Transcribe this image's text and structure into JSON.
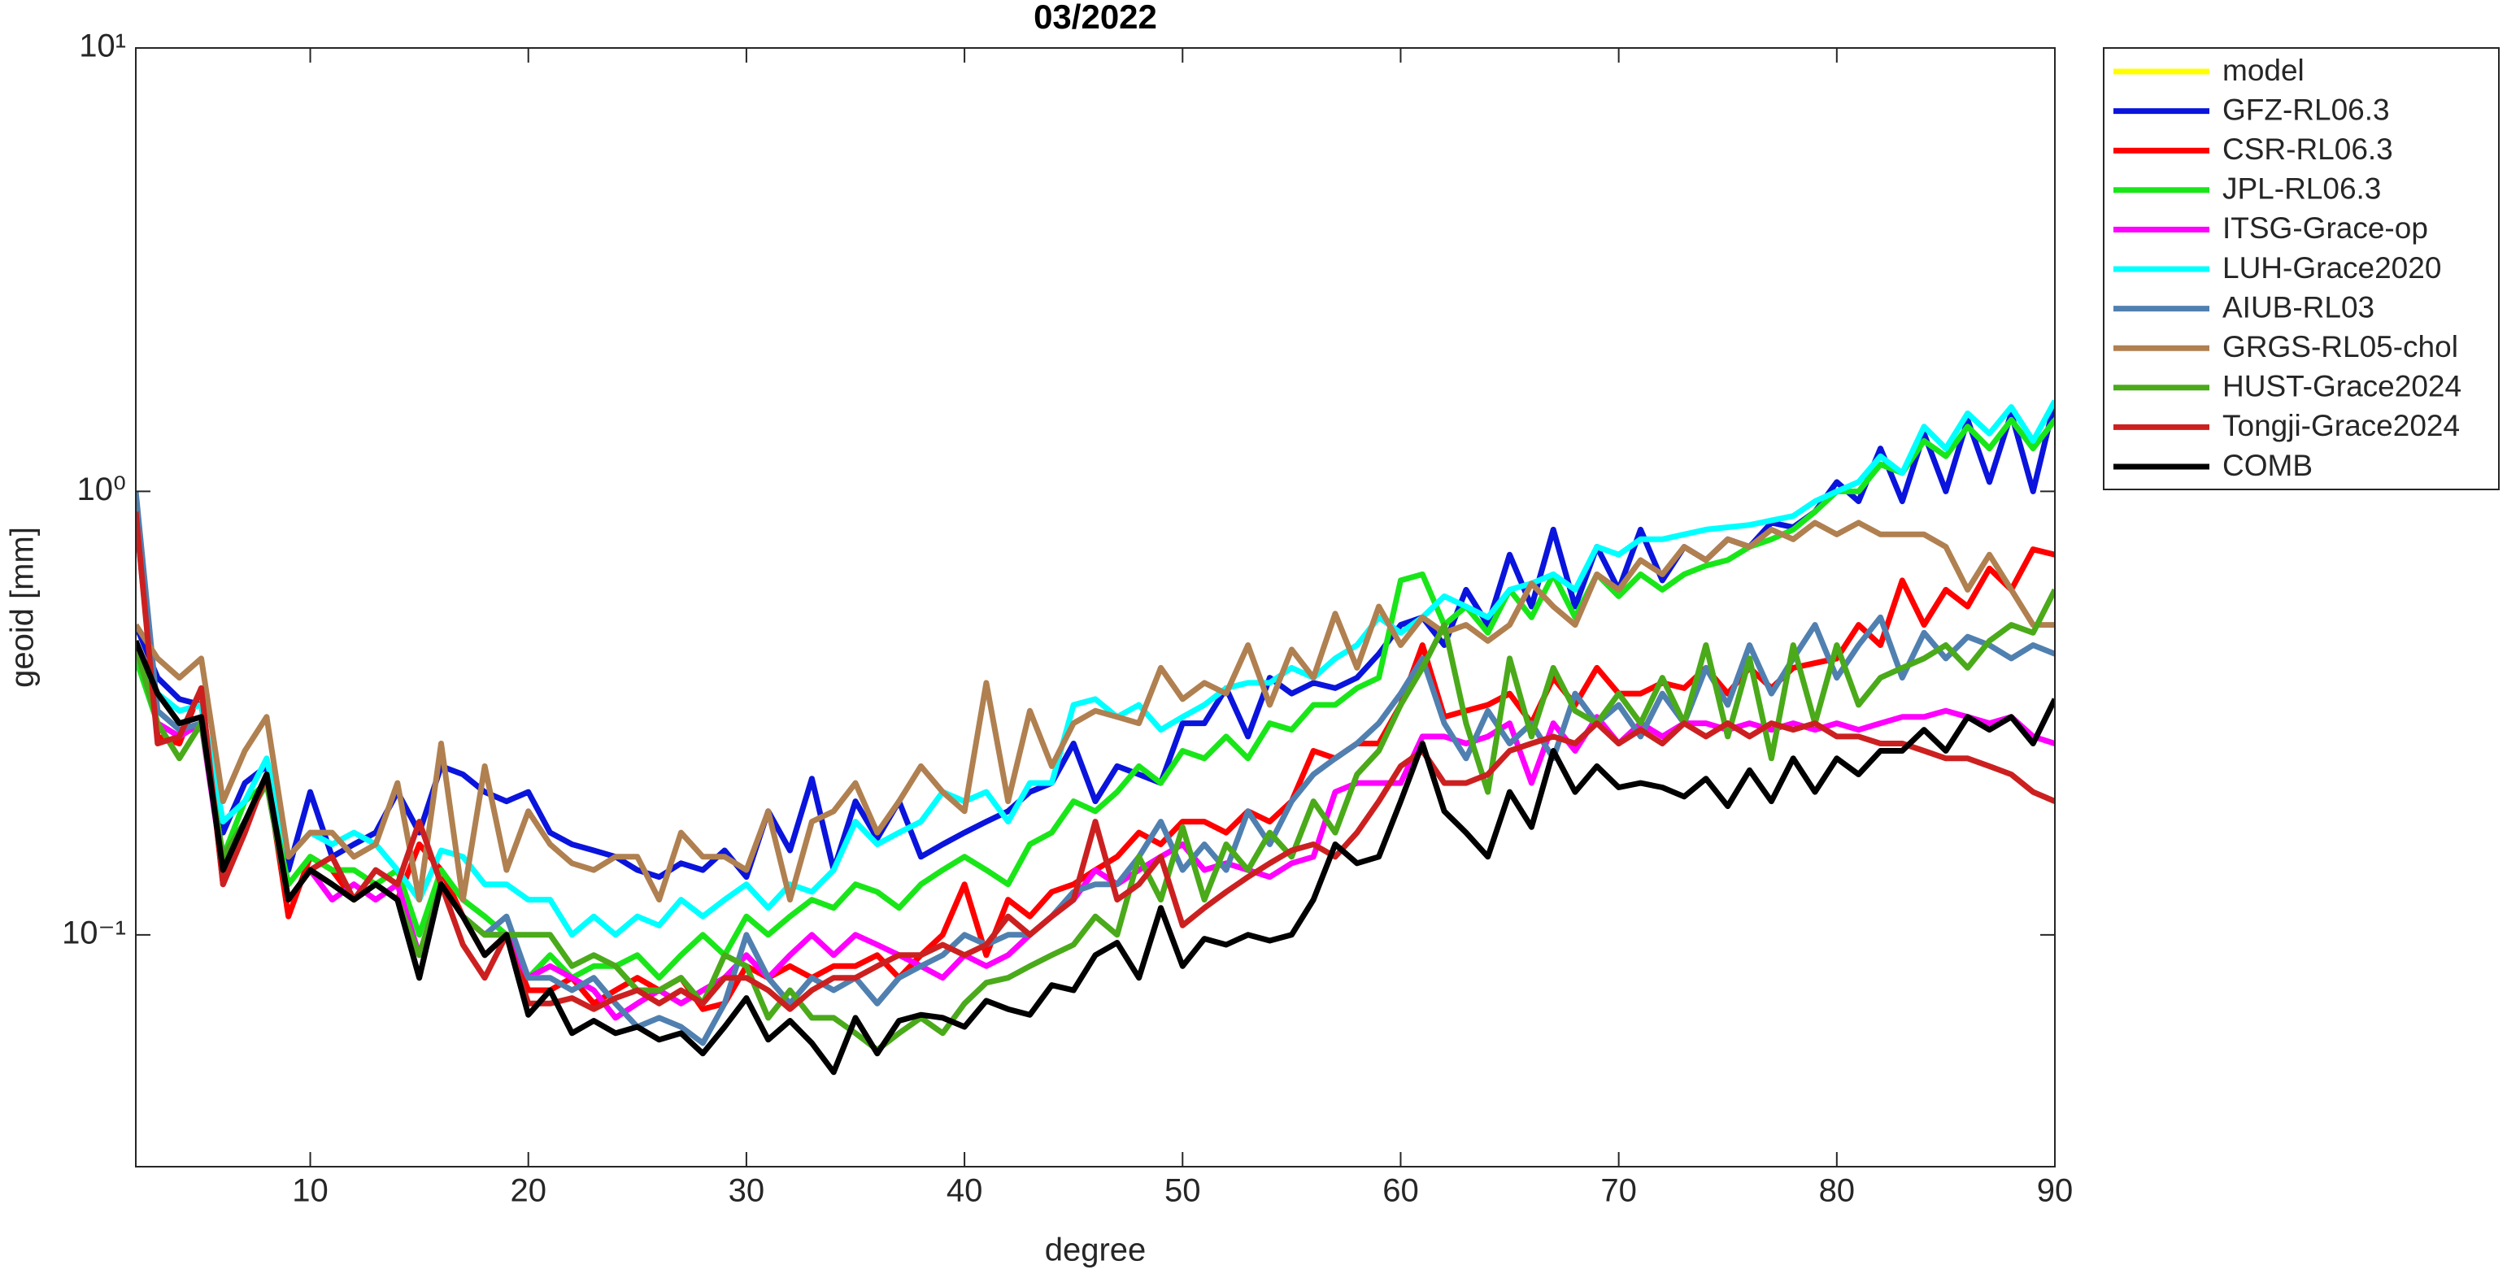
{
  "chart_data": {
    "type": "line",
    "title": "03/2022",
    "xlabel": "degree",
    "ylabel": "geoid [mm]",
    "log_y": true,
    "grid": false,
    "legend": "outside-right",
    "xlim": [
      2,
      90
    ],
    "xticks": [
      10,
      20,
      30,
      40,
      50,
      60,
      70,
      80,
      90
    ],
    "ylim": [
      0.03,
      10
    ],
    "yticks": [
      {
        "value": 0.1,
        "label": "10⁻¹"
      },
      {
        "value": 1,
        "label": "10⁰"
      },
      {
        "value": 10,
        "label": "10¹"
      }
    ],
    "x": [
      2,
      3,
      4,
      5,
      6,
      7,
      8,
      9,
      10,
      11,
      12,
      13,
      14,
      15,
      16,
      17,
      18,
      19,
      20,
      21,
      22,
      23,
      24,
      25,
      26,
      27,
      28,
      29,
      30,
      31,
      32,
      33,
      34,
      35,
      36,
      37,
      38,
      39,
      40,
      41,
      42,
      43,
      44,
      45,
      46,
      47,
      48,
      49,
      50,
      51,
      52,
      53,
      54,
      55,
      56,
      57,
      58,
      59,
      60,
      61,
      62,
      63,
      64,
      65,
      66,
      67,
      68,
      69,
      70,
      71,
      72,
      73,
      74,
      75,
      76,
      77,
      78,
      79,
      80,
      81,
      82,
      83,
      84,
      85,
      86,
      87,
      88,
      89,
      90
    ],
    "series": [
      {
        "name": "model",
        "color": "#ffff00",
        "values": [
          null,
          null,
          null,
          null,
          null,
          null,
          null,
          null,
          null,
          null,
          null,
          null,
          null,
          null,
          null,
          null,
          null,
          null,
          null,
          null,
          null,
          null,
          null,
          null,
          null,
          null,
          null,
          null,
          null,
          null,
          null,
          null,
          null,
          null,
          null,
          null,
          null,
          null,
          null,
          null,
          null,
          null,
          null,
          null,
          null,
          null,
          null,
          null,
          null,
          null,
          null,
          null,
          null,
          null,
          null,
          null,
          null,
          null,
          null,
          null,
          null,
          null,
          null,
          null,
          null,
          null,
          null,
          null,
          null,
          null,
          null,
          null,
          null,
          null,
          null,
          null,
          null,
          null,
          null,
          null,
          null,
          null,
          null,
          null,
          null,
          null,
          null,
          null,
          null
        ]
      },
      {
        "name": "GFZ-RL06.3",
        "color": "#0a14dc",
        "values": [
          0.5,
          0.38,
          0.34,
          0.33,
          0.17,
          0.22,
          0.24,
          0.14,
          0.21,
          0.15,
          0.16,
          0.17,
          0.21,
          0.17,
          0.24,
          0.23,
          0.21,
          0.2,
          0.21,
          0.17,
          0.16,
          0.155,
          0.15,
          0.14,
          0.135,
          0.145,
          0.14,
          0.155,
          0.135,
          0.19,
          0.155,
          0.225,
          0.14,
          0.2,
          0.165,
          0.2,
          0.15,
          0.16,
          0.17,
          0.18,
          0.19,
          0.21,
          0.22,
          0.27,
          0.2,
          0.24,
          0.23,
          0.22,
          0.3,
          0.3,
          0.36,
          0.28,
          0.38,
          0.35,
          0.37,
          0.36,
          0.38,
          0.43,
          0.5,
          0.52,
          0.45,
          0.6,
          0.5,
          0.72,
          0.55,
          0.82,
          0.55,
          0.75,
          0.6,
          0.82,
          0.63,
          0.75,
          0.7,
          0.78,
          0.75,
          0.85,
          0.83,
          0.9,
          1.05,
          0.95,
          1.25,
          0.95,
          1.35,
          1.0,
          1.45,
          1.05,
          1.5,
          1.0,
          1.6
        ]
      },
      {
        "name": "CSR-RL06.3",
        "color": "#ff0000",
        "values": [
          0.9,
          0.28,
          0.27,
          0.36,
          0.13,
          0.17,
          0.23,
          0.11,
          0.15,
          0.14,
          0.12,
          0.13,
          0.12,
          0.16,
          0.14,
          0.11,
          0.09,
          0.1,
          0.075,
          0.075,
          0.08,
          0.07,
          0.075,
          0.08,
          0.075,
          0.08,
          0.068,
          0.07,
          0.085,
          0.08,
          0.085,
          0.08,
          0.085,
          0.085,
          0.09,
          0.08,
          0.09,
          0.1,
          0.13,
          0.09,
          0.12,
          0.11,
          0.125,
          0.13,
          0.14,
          0.15,
          0.17,
          0.16,
          0.18,
          0.18,
          0.17,
          0.19,
          0.18,
          0.2,
          0.26,
          0.25,
          0.27,
          0.27,
          0.33,
          0.45,
          0.31,
          0.32,
          0.33,
          0.35,
          0.3,
          0.38,
          0.33,
          0.4,
          0.35,
          0.35,
          0.37,
          0.36,
          0.4,
          0.35,
          0.4,
          0.36,
          0.4,
          0.41,
          0.42,
          0.5,
          0.45,
          0.63,
          0.5,
          0.6,
          0.55,
          0.67,
          0.6,
          0.74,
          0.72
        ]
      },
      {
        "name": "JPL-RL06.3",
        "color": "#19e619",
        "values": [
          0.42,
          0.3,
          0.28,
          0.3,
          0.15,
          0.2,
          0.22,
          0.13,
          0.15,
          0.14,
          0.14,
          0.13,
          0.14,
          0.1,
          0.14,
          0.12,
          0.11,
          0.1,
          0.08,
          0.09,
          0.08,
          0.085,
          0.085,
          0.09,
          0.08,
          0.09,
          0.1,
          0.09,
          0.11,
          0.1,
          0.11,
          0.12,
          0.115,
          0.13,
          0.125,
          0.115,
          0.13,
          0.14,
          0.15,
          0.14,
          0.13,
          0.16,
          0.17,
          0.2,
          0.19,
          0.21,
          0.24,
          0.22,
          0.26,
          0.25,
          0.28,
          0.25,
          0.3,
          0.29,
          0.33,
          0.33,
          0.36,
          0.38,
          0.63,
          0.65,
          0.5,
          0.55,
          0.48,
          0.6,
          0.52,
          0.65,
          0.52,
          0.65,
          0.58,
          0.65,
          0.6,
          0.65,
          0.68,
          0.7,
          0.75,
          0.78,
          0.82,
          0.9,
          1.0,
          1.0,
          1.15,
          1.1,
          1.3,
          1.2,
          1.4,
          1.25,
          1.45,
          1.25,
          1.45
        ]
      },
      {
        "name": "ITSG-Grace-op",
        "color": "#ff00ff",
        "values": [
          0.45,
          0.3,
          0.28,
          0.3,
          0.14,
          0.18,
          0.22,
          0.12,
          0.14,
          0.12,
          0.13,
          0.12,
          0.13,
          0.09,
          0.13,
          0.11,
          0.1,
          0.1,
          0.08,
          0.085,
          0.08,
          0.075,
          0.065,
          0.07,
          0.075,
          0.07,
          0.075,
          0.08,
          0.09,
          0.08,
          0.09,
          0.1,
          0.09,
          0.1,
          0.095,
          0.09,
          0.085,
          0.08,
          0.09,
          0.085,
          0.09,
          0.1,
          0.11,
          0.12,
          0.14,
          0.13,
          0.14,
          0.15,
          0.16,
          0.14,
          0.145,
          0.14,
          0.135,
          0.145,
          0.15,
          0.21,
          0.22,
          0.22,
          0.22,
          0.28,
          0.28,
          0.27,
          0.28,
          0.3,
          0.22,
          0.3,
          0.26,
          0.31,
          0.27,
          0.3,
          0.28,
          0.3,
          0.3,
          0.29,
          0.3,
          0.29,
          0.3,
          0.29,
          0.3,
          0.29,
          0.3,
          0.31,
          0.31,
          0.32,
          0.31,
          0.3,
          0.31,
          0.28,
          0.27
        ]
      },
      {
        "name": "LUH-Grace2020",
        "color": "#00ffff",
        "values": [
          0.45,
          0.35,
          0.32,
          0.33,
          0.18,
          0.2,
          0.25,
          0.15,
          0.17,
          0.16,
          0.17,
          0.16,
          0.14,
          0.12,
          0.155,
          0.15,
          0.13,
          0.13,
          0.12,
          0.12,
          0.1,
          0.11,
          0.1,
          0.11,
          0.105,
          0.12,
          0.11,
          0.12,
          0.13,
          0.115,
          0.13,
          0.125,
          0.14,
          0.18,
          0.16,
          0.17,
          0.18,
          0.21,
          0.2,
          0.21,
          0.18,
          0.22,
          0.22,
          0.33,
          0.34,
          0.31,
          0.33,
          0.29,
          0.31,
          0.33,
          0.36,
          0.37,
          0.37,
          0.4,
          0.38,
          0.42,
          0.45,
          0.52,
          0.48,
          0.52,
          0.58,
          0.55,
          0.52,
          0.6,
          0.62,
          0.65,
          0.6,
          0.75,
          0.72,
          0.78,
          0.78,
          0.8,
          0.82,
          0.83,
          0.84,
          0.86,
          0.88,
          0.95,
          1.0,
          1.05,
          1.2,
          1.1,
          1.4,
          1.25,
          1.5,
          1.35,
          1.55,
          1.3,
          1.6
        ]
      },
      {
        "name": "AIUB-RL03",
        "color": "#5080b0",
        "values": [
          1.0,
          0.32,
          0.29,
          0.3,
          0.15,
          0.18,
          0.22,
          0.12,
          0.14,
          0.13,
          0.12,
          0.13,
          0.12,
          0.08,
          0.13,
          0.11,
          0.1,
          0.11,
          0.08,
          0.08,
          0.075,
          0.08,
          0.07,
          0.062,
          0.065,
          0.062,
          0.057,
          0.07,
          0.1,
          0.08,
          0.07,
          0.08,
          0.075,
          0.08,
          0.07,
          0.08,
          0.085,
          0.09,
          0.1,
          0.095,
          0.1,
          0.1,
          0.11,
          0.125,
          0.13,
          0.13,
          0.15,
          0.18,
          0.14,
          0.16,
          0.14,
          0.19,
          0.16,
          0.2,
          0.23,
          0.25,
          0.27,
          0.3,
          0.35,
          0.42,
          0.3,
          0.25,
          0.32,
          0.27,
          0.3,
          0.25,
          0.35,
          0.3,
          0.33,
          0.28,
          0.35,
          0.3,
          0.4,
          0.33,
          0.45,
          0.35,
          0.42,
          0.5,
          0.38,
          0.45,
          0.52,
          0.38,
          0.48,
          0.42,
          0.47,
          0.45,
          0.42,
          0.45,
          0.43
        ]
      },
      {
        "name": "GRGS-RL05-chol",
        "color": "#b08050",
        "values": [
          0.5,
          0.42,
          0.38,
          0.42,
          0.2,
          0.26,
          0.31,
          0.15,
          0.17,
          0.17,
          0.15,
          0.16,
          0.22,
          0.12,
          0.27,
          0.12,
          0.24,
          0.14,
          0.19,
          0.16,
          0.145,
          0.14,
          0.15,
          0.15,
          0.12,
          0.17,
          0.15,
          0.15,
          0.14,
          0.19,
          0.12,
          0.18,
          0.19,
          0.22,
          0.17,
          0.2,
          0.24,
          0.21,
          0.19,
          0.37,
          0.2,
          0.32,
          0.24,
          0.3,
          0.32,
          0.31,
          0.3,
          0.4,
          0.34,
          0.37,
          0.35,
          0.45,
          0.33,
          0.44,
          0.38,
          0.53,
          0.4,
          0.55,
          0.45,
          0.52,
          0.48,
          0.5,
          0.46,
          0.5,
          0.62,
          0.55,
          0.5,
          0.65,
          0.6,
          0.7,
          0.65,
          0.75,
          0.7,
          0.78,
          0.75,
          0.82,
          0.78,
          0.85,
          0.8,
          0.85,
          0.8,
          0.8,
          0.8,
          0.75,
          0.6,
          0.72,
          0.6,
          0.5,
          0.5
        ]
      },
      {
        "name": "HUST-Grace2024",
        "color": "#4aaa1a",
        "values": [
          0.45,
          0.3,
          0.25,
          0.3,
          0.15,
          0.18,
          0.22,
          0.12,
          0.14,
          0.13,
          0.12,
          0.13,
          0.12,
          0.09,
          0.13,
          0.11,
          0.1,
          0.1,
          0.1,
          0.1,
          0.085,
          0.09,
          0.085,
          0.075,
          0.075,
          0.08,
          0.07,
          0.09,
          0.085,
          0.065,
          0.075,
          0.065,
          0.065,
          0.06,
          0.055,
          0.06,
          0.065,
          0.06,
          0.07,
          0.078,
          0.08,
          0.085,
          0.09,
          0.095,
          0.11,
          0.1,
          0.15,
          0.12,
          0.175,
          0.12,
          0.16,
          0.14,
          0.17,
          0.15,
          0.2,
          0.17,
          0.23,
          0.26,
          0.33,
          0.4,
          0.5,
          0.3,
          0.21,
          0.42,
          0.28,
          0.4,
          0.32,
          0.3,
          0.35,
          0.3,
          0.38,
          0.3,
          0.45,
          0.28,
          0.42,
          0.25,
          0.45,
          0.3,
          0.45,
          0.33,
          0.38,
          0.4,
          0.42,
          0.45,
          0.4,
          0.46,
          0.5,
          0.48,
          0.6
        ]
      },
      {
        "name": "Tongji-Grace2024",
        "color": "#cc2020",
        "values": [
          0.9,
          0.27,
          0.28,
          0.36,
          0.13,
          0.17,
          0.23,
          0.12,
          0.14,
          0.15,
          0.12,
          0.14,
          0.13,
          0.18,
          0.13,
          0.095,
          0.08,
          0.1,
          0.07,
          0.07,
          0.072,
          0.068,
          0.072,
          0.075,
          0.07,
          0.075,
          0.07,
          0.08,
          0.08,
          0.075,
          0.068,
          0.075,
          0.08,
          0.08,
          0.085,
          0.09,
          0.09,
          0.095,
          0.09,
          0.095,
          0.11,
          0.1,
          0.11,
          0.12,
          0.18,
          0.12,
          0.13,
          0.15,
          0.105,
          0.115,
          0.125,
          0.135,
          0.145,
          0.155,
          0.16,
          0.15,
          0.17,
          0.2,
          0.24,
          0.26,
          0.22,
          0.22,
          0.23,
          0.26,
          0.27,
          0.28,
          0.27,
          0.3,
          0.27,
          0.29,
          0.27,
          0.3,
          0.28,
          0.3,
          0.28,
          0.3,
          0.29,
          0.3,
          0.28,
          0.28,
          0.27,
          0.27,
          0.26,
          0.25,
          0.25,
          0.24,
          0.23,
          0.21,
          0.2
        ]
      },
      {
        "name": "COMB",
        "color": "#000000",
        "values": [
          0.46,
          0.35,
          0.3,
          0.31,
          0.14,
          0.18,
          0.23,
          0.12,
          0.14,
          0.13,
          0.12,
          0.13,
          0.12,
          0.08,
          0.13,
          0.11,
          0.09,
          0.1,
          0.066,
          0.075,
          0.06,
          0.064,
          0.06,
          0.062,
          0.058,
          0.06,
          0.054,
          0.062,
          0.072,
          0.058,
          0.064,
          0.057,
          0.049,
          0.065,
          0.054,
          0.064,
          0.066,
          0.065,
          0.062,
          0.071,
          0.068,
          0.066,
          0.077,
          0.075,
          0.09,
          0.096,
          0.08,
          0.115,
          0.085,
          0.098,
          0.095,
          0.1,
          0.097,
          0.1,
          0.12,
          0.16,
          0.145,
          0.15,
          0.2,
          0.27,
          0.19,
          0.17,
          0.15,
          0.21,
          0.175,
          0.26,
          0.21,
          0.24,
          0.215,
          0.22,
          0.215,
          0.205,
          0.225,
          0.195,
          0.235,
          0.2,
          0.25,
          0.21,
          0.25,
          0.23,
          0.26,
          0.26,
          0.29,
          0.26,
          0.31,
          0.29,
          0.31,
          0.27,
          0.34
        ]
      }
    ]
  }
}
